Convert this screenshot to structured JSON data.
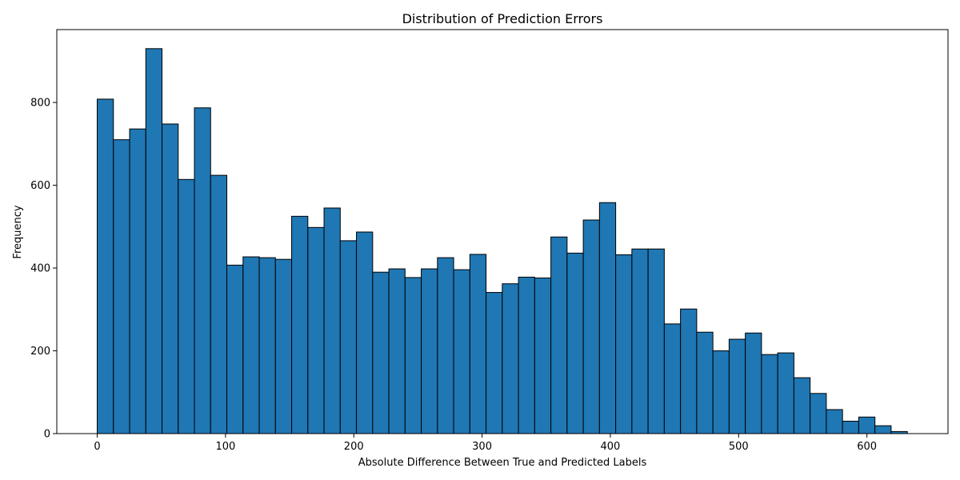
{
  "chart_data": {
    "type": "bar",
    "title": "Distribution of Prediction Errors",
    "xlabel": "Absolute Difference Between True and Predicted Labels",
    "ylabel": "Frequency",
    "xlim": [
      -31.5,
      663.2
    ],
    "ylim": [
      0,
      976
    ],
    "xticks": [
      0,
      100,
      200,
      300,
      400,
      500,
      600
    ],
    "yticks": [
      0,
      200,
      400,
      600,
      800
    ],
    "bar_color": "#1f77b4",
    "edge_color": "#000000",
    "bin_start": 0,
    "bin_width": 12.63,
    "values": [
      808,
      710,
      736,
      930,
      748,
      614,
      787,
      624,
      407,
      427,
      425,
      421,
      525,
      498,
      545,
      466,
      487,
      390,
      398,
      377,
      398,
      425,
      396,
      433,
      341,
      362,
      378,
      376,
      475,
      436,
      516,
      558,
      432,
      446,
      446,
      265,
      301,
      245,
      200,
      228,
      243,
      191,
      195,
      135,
      97,
      58,
      30,
      40,
      19,
      5
    ]
  }
}
